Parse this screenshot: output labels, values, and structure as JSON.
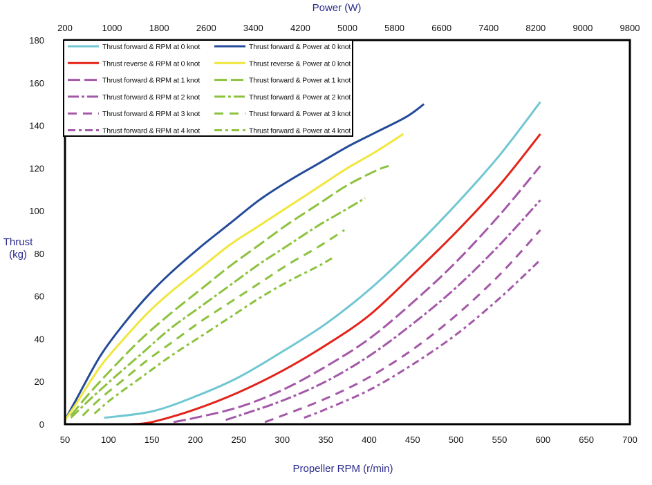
{
  "chart_data": {
    "type": "line",
    "title": "",
    "xlabel": "Propeller RPM (r/min)",
    "x2label": "Power (W)",
    "ylabel": [
      "Thrust",
      "(kg)"
    ],
    "xlim": [
      50,
      700
    ],
    "x2lim": [
      200,
      9800
    ],
    "ylim": [
      0,
      180
    ],
    "xticks": [
      50,
      100,
      150,
      200,
      250,
      300,
      350,
      400,
      450,
      500,
      550,
      600,
      650,
      700
    ],
    "x2ticks": [
      200,
      1000,
      1800,
      2600,
      3400,
      4200,
      5000,
      5800,
      6600,
      7400,
      8200,
      9000,
      9800
    ],
    "yticks": [
      0,
      20,
      40,
      60,
      80,
      100,
      120,
      140,
      160,
      180
    ],
    "grid": false,
    "legend_position": "top-left",
    "colors": {
      "cyan": "#6fc7d2",
      "navy": "#244a9a",
      "red": "#e3231a",
      "yellow": "#f0e63c",
      "purple": "#a458a8",
      "green": "#8dc23e",
      "frame": "#000000",
      "title": "#2a2a8c"
    },
    "series": [
      {
        "name": "Thrust forward &  RPM at 0 knot",
        "axis": "rpm",
        "color": "cyan",
        "dash": "solid",
        "x": [
          95,
          150,
          200,
          250,
          300,
          350,
          400,
          450,
          500,
          550,
          597
        ],
        "y": [
          3,
          6,
          13,
          22,
          34,
          47,
          63,
          82,
          103,
          126,
          151
        ]
      },
      {
        "name": "Thrust forward & Power at 0 knot",
        "axis": "power",
        "color": "navy",
        "dash": "solid",
        "x": [
          200,
          400,
          800,
          1200,
          1600,
          2000,
          2500,
          3000,
          3500,
          4000,
          4500,
          5000,
          5500,
          6000,
          6300
        ],
        "y": [
          2,
          12,
          32,
          47,
          60,
          71,
          83,
          94,
          105,
          114,
          122,
          130,
          137,
          144,
          150
        ]
      },
      {
        "name": "Thrust reverse  & RPM at 0 knot",
        "axis": "rpm",
        "color": "red",
        "dash": "solid",
        "x": [
          125,
          150,
          200,
          250,
          300,
          350,
          400,
          450,
          500,
          550,
          597
        ],
        "y": [
          0,
          1,
          7,
          15,
          25,
          37,
          51,
          70,
          90,
          112,
          136
        ]
      },
      {
        "name": "Thrust reverse & Power at 0 knot",
        "axis": "power",
        "color": "yellow",
        "dash": "solid",
        "x": [
          200,
          400,
          800,
          1200,
          1600,
          2000,
          2500,
          3000,
          3500,
          4000,
          4500,
          5000,
          5500,
          5950
        ],
        "y": [
          2,
          10,
          27,
          40,
          52,
          62,
          73,
          84,
          93,
          102,
          111,
          120,
          128,
          136
        ]
      },
      {
        "name": "Thrust forward &  RPM at 1 knot",
        "axis": "rpm",
        "color": "purple",
        "dash": "long",
        "x": [
          175,
          200,
          250,
          300,
          350,
          400,
          450,
          500,
          550,
          597
        ],
        "y": [
          1,
          3,
          8,
          16,
          27,
          40,
          57,
          76,
          98,
          121
        ]
      },
      {
        "name": "Thrust forward & Power at 1 knot",
        "axis": "power",
        "color": "green",
        "dash": "long",
        "x": [
          300,
          600,
          1000,
          1500,
          2000,
          2500,
          3000,
          3500,
          4000,
          4500,
          5000,
          5500,
          5700
        ],
        "y": [
          4,
          14,
          26,
          40,
          52,
          63,
          74,
          84,
          94,
          103,
          112,
          119,
          121
        ]
      },
      {
        "name": "Thrust forward &  RPM at 2 knot",
        "axis": "rpm",
        "color": "purple",
        "dash": "dashdot",
        "x": [
          235,
          250,
          300,
          350,
          400,
          450,
          500,
          550,
          597
        ],
        "y": [
          2,
          4,
          11,
          20,
          32,
          47,
          64,
          84,
          105
        ]
      },
      {
        "name": "Thrust forward & Power at 2 knot",
        "axis": "power",
        "color": "green",
        "dash": "dashdot",
        "x": [
          300,
          600,
          1000,
          1500,
          2000,
          2500,
          3000,
          3500,
          4000,
          4500,
          5000,
          5300
        ],
        "y": [
          3,
          11,
          21,
          33,
          45,
          55,
          65,
          75,
          84,
          93,
          101,
          106
        ]
      },
      {
        "name": "Thrust forward &  RPM at 3 knot",
        "axis": "rpm",
        "color": "purple",
        "dash": "dashed",
        "x": [
          280,
          300,
          350,
          400,
          450,
          500,
          550,
          597
        ],
        "y": [
          1,
          4,
          12,
          22,
          35,
          51,
          70,
          91
        ]
      },
      {
        "name": "Thrust forward & Power at 3 knot",
        "axis": "power",
        "color": "green",
        "dash": "dashed",
        "x": [
          500,
          800,
          1200,
          1600,
          2000,
          2500,
          3000,
          3500,
          4000,
          4500,
          4950
        ],
        "y": [
          4,
          12,
          21,
          30,
          38,
          48,
          57,
          66,
          75,
          83,
          91
        ]
      },
      {
        "name": "Thrust forward &  RPM at 4 knot",
        "axis": "rpm",
        "color": "purple",
        "dash": "dashdot2",
        "x": [
          325,
          350,
          400,
          450,
          500,
          550,
          597
        ],
        "y": [
          3,
          7,
          16,
          28,
          42,
          59,
          77
        ]
      },
      {
        "name": "Thrust forward & Power at 4 knot",
        "axis": "power",
        "color": "green",
        "dash": "dashdot2",
        "x": [
          700,
          1000,
          1500,
          2000,
          2500,
          3000,
          3500,
          4000,
          4500,
          4750
        ],
        "y": [
          5,
          12,
          22,
          32,
          41,
          50,
          59,
          67,
          74,
          78
        ]
      }
    ]
  }
}
